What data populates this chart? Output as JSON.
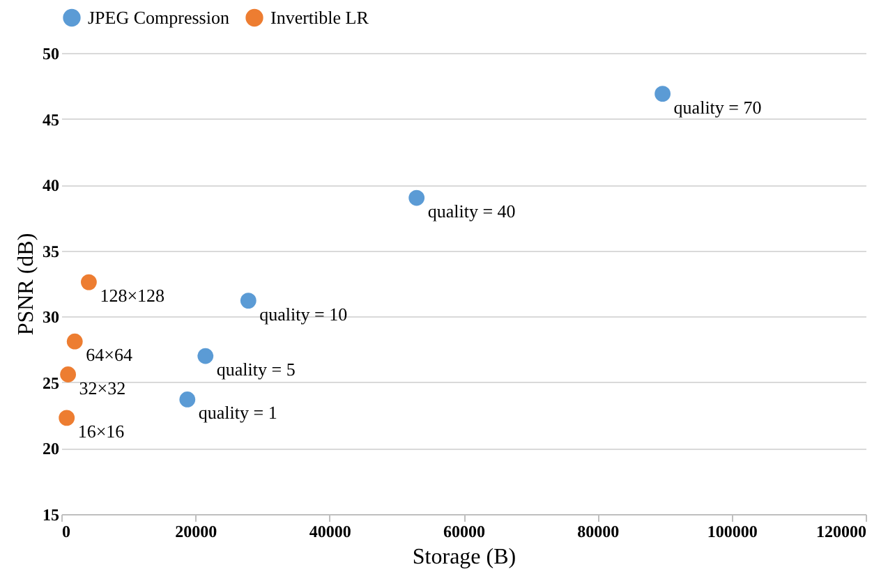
{
  "chart_data": {
    "type": "scatter",
    "xlabel": "Storage (B)",
    "ylabel": "PSNR (dB)",
    "xlim": [
      0,
      120000
    ],
    "xticks": [
      0,
      20000,
      40000,
      60000,
      80000,
      100000,
      120000
    ],
    "ylim": [
      15,
      50
    ],
    "yticks": [
      15,
      20,
      25,
      30,
      35,
      40,
      45,
      50
    ],
    "grid": "y",
    "legend": "top",
    "marker": "circle",
    "series": [
      {
        "name": "JPEG Compression",
        "color": "#5b9bd5",
        "x": [
          18800,
          21500,
          27900,
          53000,
          89700
        ],
        "values": [
          23.7,
          27.0,
          31.2,
          39.0,
          46.9
        ]
      },
      {
        "name": "Invertible LR",
        "color": "#ed7d31",
        "x": [
          800,
          1000,
          2000,
          4100
        ],
        "values": [
          22.3,
          25.6,
          28.1,
          32.6
        ]
      }
    ],
    "annotations": [
      {
        "text": "quality = 1",
        "x": 18800,
        "y": 23.7
      },
      {
        "text": "quality = 5",
        "x": 21500,
        "y": 27.0
      },
      {
        "text": "quality = 10",
        "x": 27900,
        "y": 31.2
      },
      {
        "text": "quality = 40",
        "x": 53000,
        "y": 39.0
      },
      {
        "text": "quality = 70",
        "x": 89700,
        "y": 46.9
      },
      {
        "text": "16×16",
        "x": 800,
        "y": 22.3
      },
      {
        "text": "32×32",
        "x": 1000,
        "y": 25.6
      },
      {
        "text": "64×64",
        "x": 2000,
        "y": 28.1
      },
      {
        "text": "128×128",
        "x": 4100,
        "y": 32.6
      }
    ]
  }
}
